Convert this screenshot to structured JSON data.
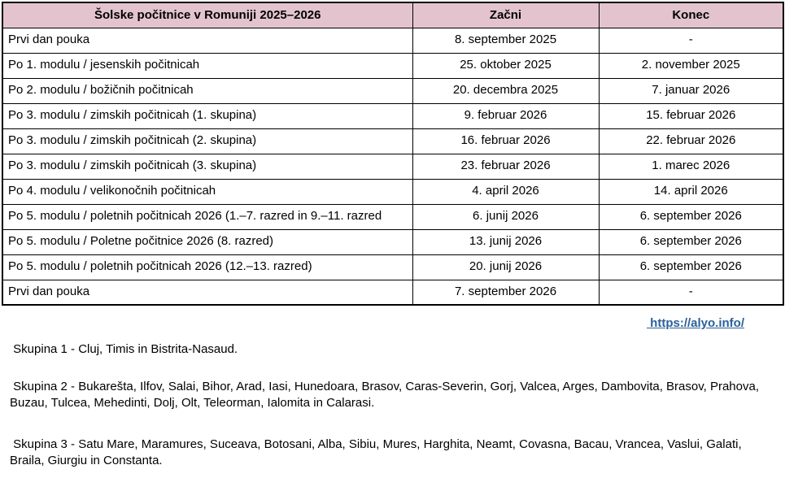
{
  "table": {
    "header": {
      "title": "Šolske počitnice v Romuniji 2025–2026",
      "start": "Začni",
      "end": "Konec"
    },
    "rows": [
      {
        "label": "Prvi dan pouka",
        "start": "8. september 2025",
        "end": "-"
      },
      {
        "label": "Po 1. modulu / jesenskih počitnicah",
        "start": "25. oktober 2025",
        "end": "2. november 2025"
      },
      {
        "label": "Po 2. modulu / božičnih počitnicah",
        "start": "20. decembra 2025",
        "end": "7. januar 2026"
      },
      {
        "label": "Po 3. modulu / zimskih počitnicah (1. skupina)",
        "start": "9. februar 2026",
        "end": "15. februar 2026"
      },
      {
        "label": "Po 3. modulu / zimskih počitnicah (2. skupina)",
        "start": "16. februar 2026",
        "end": "22. februar 2026"
      },
      {
        "label": "Po 3. modulu / zimskih počitnicah (3. skupina)",
        "start": "23. februar 2026",
        "end": "1. marec 2026"
      },
      {
        "label": "Po 4. modulu / velikonočnih počitnicah",
        "start": "4. april 2026",
        "end": "14. april 2026"
      },
      {
        "label": "Po 5. modulu / poletnih počitnicah 2026 (1.–7. razred in 9.–11. razred",
        "start": "6. junij 2026",
        "end": "6. september 2026"
      },
      {
        "label": "Po 5. modulu / Poletne počitnice 2026 (8. razred)",
        "start": "13. junij 2026",
        "end": "6. september 2026"
      },
      {
        "label": "Po 5. modulu / poletnih počitnicah 2026 (12.–13. razred)",
        "start": "20. junij 2026",
        "end": "6. september 2026"
      },
      {
        "label": "Prvi dan pouka",
        "start": "7. september 2026",
        "end": "-"
      }
    ]
  },
  "link": {
    "text": " https://alyo.info/"
  },
  "notes": [
    " Skupina 1 - Cluj, Timis in Bistrita-Nasaud.",
    " Skupina 2 - Bukarešta, Ilfov, Salai, Bihor, Arad, Iasi, Hunedoara, Brasov, Caras-Severin, Gorj, Valcea, Arges, Dambovita, Brasov, Prahova, Buzau, Tulcea, Mehedinti, Dolj, Olt, Teleorman, Ialomita in Calarasi.",
    " Skupina 3 - Satu Mare, Maramures, Suceava, Botosani, Alba, Sibiu, Mures, Harghita, Neamt, Covasna, Bacau, Vrancea, Vaslui, Galati, Braila, Giurgiu in Constanta."
  ],
  "colors": {
    "header_bg": "#e3c4ce",
    "border": "#000000",
    "link": "#2a6099"
  }
}
